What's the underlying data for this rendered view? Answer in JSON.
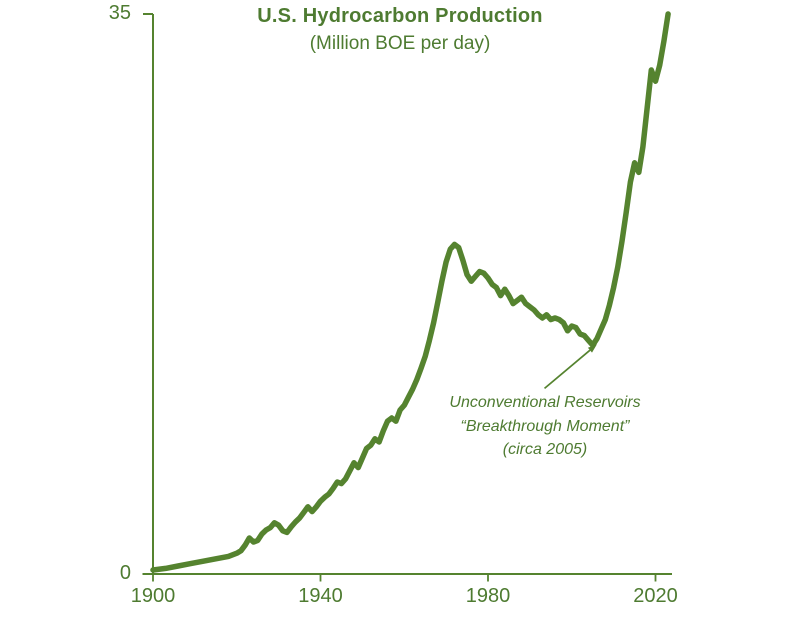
{
  "chart_data": {
    "type": "line",
    "title": "U.S. Hydrocarbon Production",
    "subtitle": "(Million BOE per day)",
    "xlabel": "",
    "ylabel": "",
    "xlim": [
      1900,
      2024
    ],
    "ylim": [
      0,
      35
    ],
    "grid": false,
    "legend": false,
    "x_ticks": [
      {
        "value": 1900,
        "label": "1900"
      },
      {
        "value": 1940,
        "label": "1940"
      },
      {
        "value": 1980,
        "label": "1980"
      },
      {
        "value": 2020,
        "label": "2020"
      }
    ],
    "y_ticks": [
      {
        "value": 0,
        "label": "0"
      },
      {
        "value": 35,
        "label": "35"
      }
    ],
    "colors": {
      "line": "#55832F",
      "axis": "#55832F",
      "text": "#4E7B31"
    },
    "series": [
      {
        "name": "U.S. hydrocarbon production (million BOE per day)",
        "points": [
          [
            1900,
            0.25
          ],
          [
            1903,
            0.35
          ],
          [
            1906,
            0.5
          ],
          [
            1909,
            0.65
          ],
          [
            1912,
            0.8
          ],
          [
            1915,
            0.95
          ],
          [
            1918,
            1.1
          ],
          [
            1920,
            1.3
          ],
          [
            1921,
            1.45
          ],
          [
            1922,
            1.8
          ],
          [
            1923,
            2.25
          ],
          [
            1924,
            2.0
          ],
          [
            1925,
            2.1
          ],
          [
            1926,
            2.5
          ],
          [
            1927,
            2.75
          ],
          [
            1928,
            2.9
          ],
          [
            1929,
            3.2
          ],
          [
            1930,
            3.05
          ],
          [
            1931,
            2.7
          ],
          [
            1932,
            2.6
          ],
          [
            1933,
            2.95
          ],
          [
            1934,
            3.25
          ],
          [
            1935,
            3.5
          ],
          [
            1936,
            3.85
          ],
          [
            1937,
            4.2
          ],
          [
            1938,
            3.9
          ],
          [
            1939,
            4.2
          ],
          [
            1940,
            4.55
          ],
          [
            1941,
            4.8
          ],
          [
            1942,
            5.0
          ],
          [
            1943,
            5.35
          ],
          [
            1944,
            5.75
          ],
          [
            1945,
            5.65
          ],
          [
            1946,
            5.95
          ],
          [
            1947,
            6.45
          ],
          [
            1948,
            6.95
          ],
          [
            1949,
            6.65
          ],
          [
            1950,
            7.25
          ],
          [
            1951,
            7.85
          ],
          [
            1952,
            8.05
          ],
          [
            1953,
            8.45
          ],
          [
            1954,
            8.25
          ],
          [
            1955,
            8.95
          ],
          [
            1956,
            9.55
          ],
          [
            1957,
            9.75
          ],
          [
            1958,
            9.55
          ],
          [
            1959,
            10.25
          ],
          [
            1960,
            10.55
          ],
          [
            1961,
            11.05
          ],
          [
            1962,
            11.55
          ],
          [
            1963,
            12.15
          ],
          [
            1964,
            12.85
          ],
          [
            1965,
            13.6
          ],
          [
            1966,
            14.6
          ],
          [
            1967,
            15.7
          ],
          [
            1968,
            17.0
          ],
          [
            1969,
            18.3
          ],
          [
            1970,
            19.5
          ],
          [
            1971,
            20.3
          ],
          [
            1972,
            20.6
          ],
          [
            1973,
            20.4
          ],
          [
            1974,
            19.6
          ],
          [
            1975,
            18.7
          ],
          [
            1976,
            18.3
          ],
          [
            1977,
            18.6
          ],
          [
            1978,
            18.9
          ],
          [
            1979,
            18.8
          ],
          [
            1980,
            18.5
          ],
          [
            1981,
            18.1
          ],
          [
            1982,
            17.9
          ],
          [
            1983,
            17.4
          ],
          [
            1984,
            17.8
          ],
          [
            1985,
            17.4
          ],
          [
            1986,
            16.9
          ],
          [
            1987,
            17.1
          ],
          [
            1988,
            17.3
          ],
          [
            1989,
            16.9
          ],
          [
            1990,
            16.7
          ],
          [
            1991,
            16.5
          ],
          [
            1992,
            16.2
          ],
          [
            1993,
            16.0
          ],
          [
            1994,
            16.2
          ],
          [
            1995,
            15.9
          ],
          [
            1996,
            16.0
          ],
          [
            1997,
            15.9
          ],
          [
            1998,
            15.7
          ],
          [
            1999,
            15.2
          ],
          [
            2000,
            15.5
          ],
          [
            2001,
            15.4
          ],
          [
            2002,
            15.0
          ],
          [
            2003,
            14.9
          ],
          [
            2004,
            14.6
          ],
          [
            2005,
            14.3
          ],
          [
            2006,
            14.7
          ],
          [
            2007,
            15.3
          ],
          [
            2008,
            15.9
          ],
          [
            2009,
            16.8
          ],
          [
            2010,
            17.9
          ],
          [
            2011,
            19.2
          ],
          [
            2012,
            20.8
          ],
          [
            2013,
            22.6
          ],
          [
            2014,
            24.5
          ],
          [
            2015,
            25.7
          ],
          [
            2016,
            25.1
          ],
          [
            2017,
            26.7
          ],
          [
            2018,
            29.1
          ],
          [
            2019,
            31.5
          ],
          [
            2020,
            30.8
          ],
          [
            2021,
            31.8
          ],
          [
            2022,
            33.3
          ],
          [
            2023,
            35.0
          ]
        ]
      }
    ],
    "annotation": {
      "lines": [
        "Unconventional Reservoirs",
        "“Breakthrough Moment”",
        "(circa 2005)"
      ],
      "arrow": {
        "from": {
          "year": 1993.5,
          "value": 11.6
        },
        "to": {
          "year": 2006,
          "value": 14.35
        }
      }
    }
  }
}
